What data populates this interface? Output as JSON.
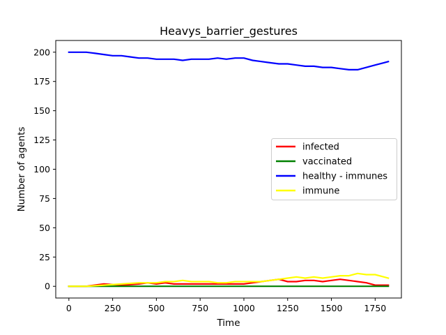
{
  "chart_data": {
    "type": "line",
    "title": "Heavys_barrier_gestures",
    "xlabel": "Time",
    "ylabel": "Number of agents",
    "xlim": [
      -75,
      1900
    ],
    "ylim": [
      -10,
      210
    ],
    "xticks": [
      0,
      250,
      500,
      750,
      1000,
      1250,
      1500,
      1750
    ],
    "yticks": [
      0,
      25,
      50,
      75,
      100,
      125,
      150,
      175,
      200
    ],
    "grid": false,
    "legend_position": "center-right",
    "series": [
      {
        "name": "infected",
        "color": "#ff0000",
        "x": [
          0,
          100,
          200,
          300,
          400,
          450,
          500,
          550,
          600,
          650,
          700,
          800,
          900,
          1000,
          1050,
          1100,
          1150,
          1200,
          1250,
          1300,
          1350,
          1400,
          1450,
          1500,
          1550,
          1600,
          1650,
          1700,
          1750,
          1825
        ],
        "y": [
          0,
          0,
          2,
          1,
          2,
          3,
          2,
          3,
          2,
          2,
          2,
          2,
          2,
          2,
          3,
          4,
          5,
          6,
          4,
          4,
          5,
          5,
          4,
          5,
          6,
          5,
          4,
          3,
          1,
          1
        ]
      },
      {
        "name": "vaccinated",
        "color": "#008000",
        "x": [
          0,
          1825
        ],
        "y": [
          0,
          0
        ]
      },
      {
        "name": "healthy - immunes",
        "color": "#0000ff",
        "x": [
          0,
          100,
          150,
          200,
          250,
          300,
          350,
          400,
          450,
          500,
          550,
          600,
          650,
          700,
          750,
          800,
          850,
          900,
          950,
          1000,
          1050,
          1100,
          1150,
          1200,
          1250,
          1300,
          1350,
          1400,
          1450,
          1500,
          1550,
          1600,
          1650,
          1700,
          1750,
          1800,
          1825
        ],
        "y": [
          200,
          200,
          199,
          198,
          197,
          197,
          196,
          195,
          195,
          194,
          194,
          194,
          193,
          194,
          194,
          194,
          195,
          194,
          195,
          195,
          193,
          192,
          191,
          190,
          190,
          189,
          188,
          188,
          187,
          187,
          186,
          185,
          185,
          187,
          189,
          191,
          192
        ]
      },
      {
        "name": "immune",
        "color": "#ffff00",
        "x": [
          0,
          100,
          200,
          300,
          400,
          500,
          550,
          600,
          650,
          700,
          750,
          800,
          850,
          900,
          950,
          1000,
          1050,
          1100,
          1150,
          1200,
          1250,
          1300,
          1350,
          1400,
          1450,
          1500,
          1550,
          1600,
          1650,
          1700,
          1750,
          1800,
          1825
        ],
        "y": [
          0,
          0,
          1,
          2,
          3,
          3,
          4,
          4,
          5,
          4,
          4,
          4,
          3,
          3,
          4,
          4,
          4,
          4,
          5,
          6,
          7,
          8,
          7,
          8,
          7,
          8,
          9,
          9,
          11,
          10,
          10,
          8,
          7
        ]
      }
    ]
  }
}
